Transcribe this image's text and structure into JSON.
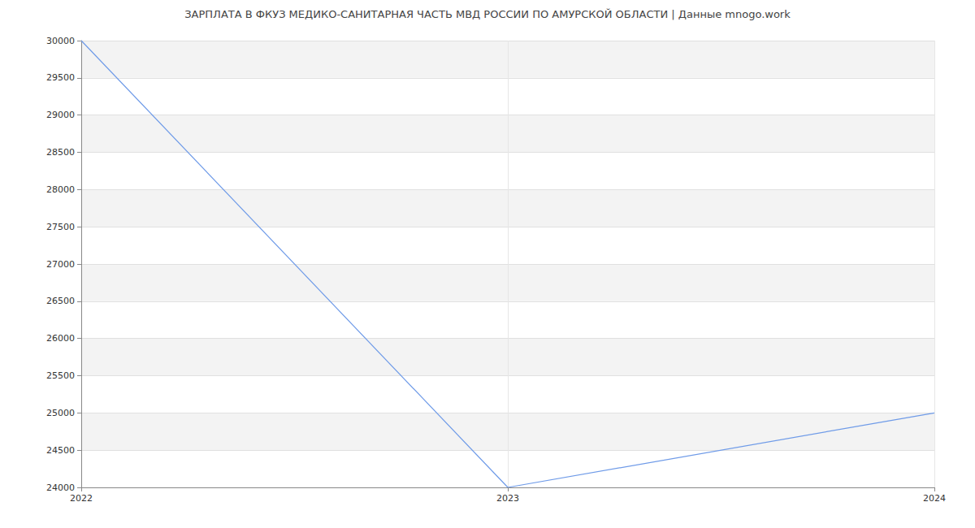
{
  "chart_data": {
    "type": "line",
    "title": "ЗАРПЛАТА В ФКУЗ МЕДИКО-САНИТАРНАЯ ЧАСТЬ МВД РОССИИ ПО АМУРСКОЙ ОБЛАСТИ | Данные mnogo.work",
    "categories": [
      "2022",
      "2023",
      "2024"
    ],
    "values": [
      30000,
      24000,
      25000
    ],
    "color": "#6f9be8",
    "marker": "none",
    "ylim": [
      24000,
      30000
    ],
    "yticks": [
      24000,
      24500,
      25000,
      25500,
      26000,
      26500,
      27000,
      27500,
      28000,
      28500,
      29000,
      29500,
      30000
    ],
    "grid": true
  }
}
